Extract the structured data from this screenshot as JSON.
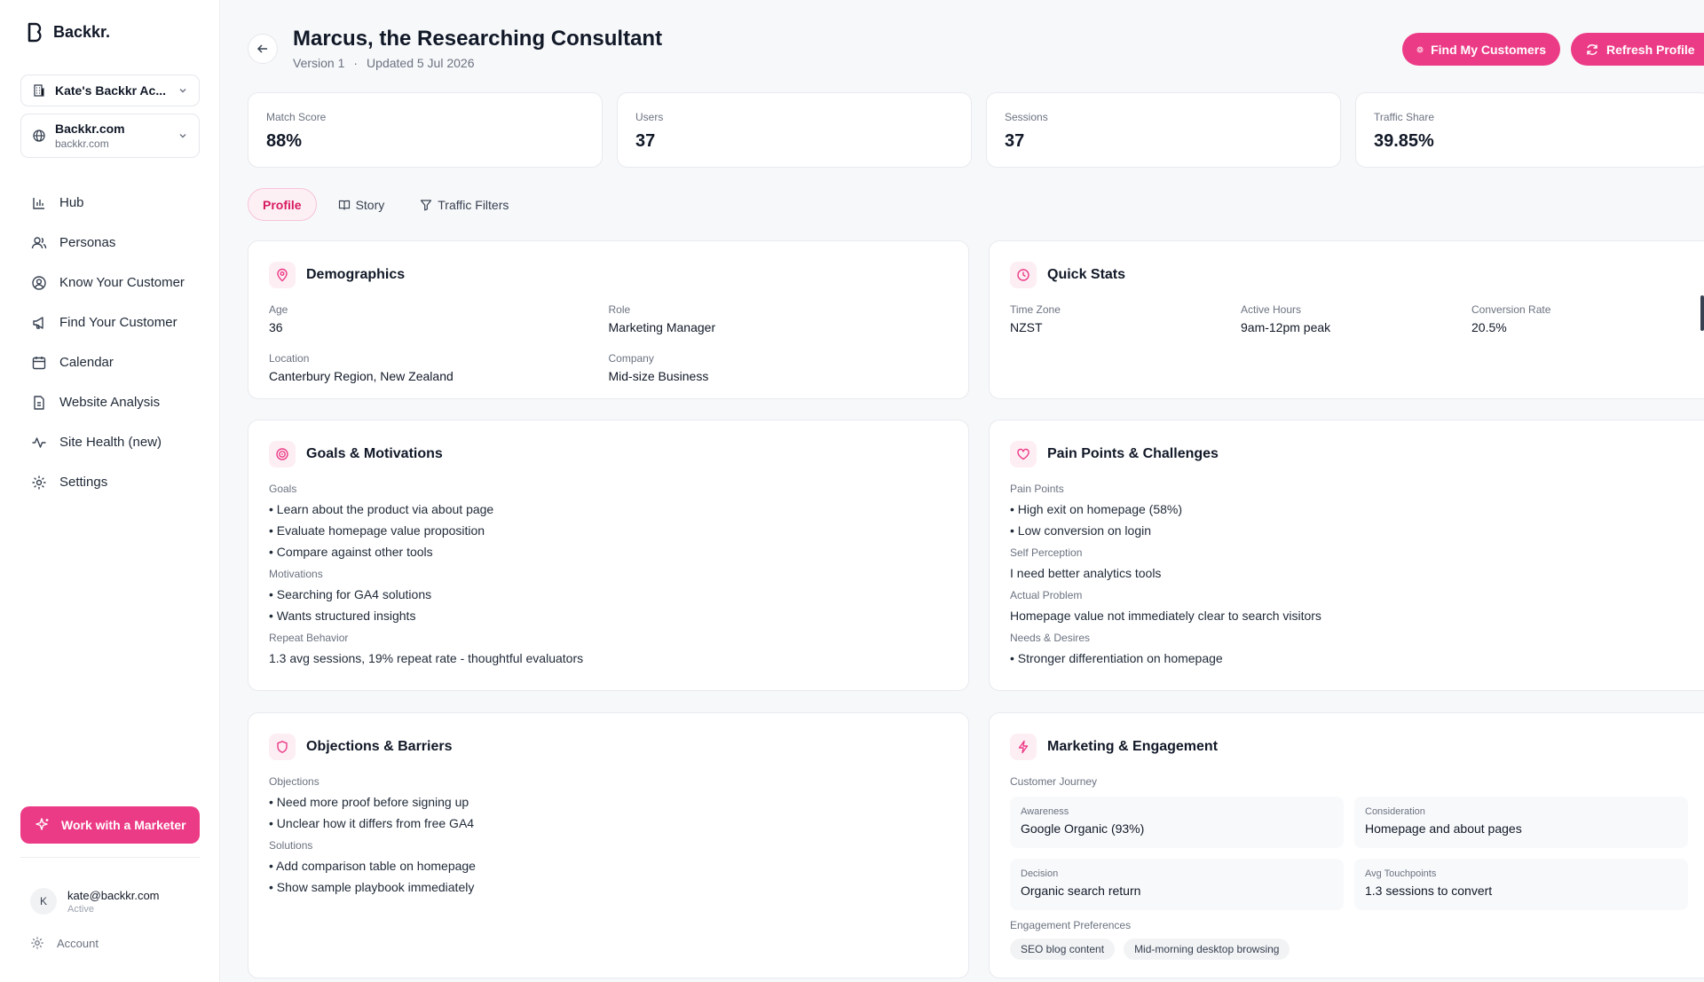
{
  "brand": {
    "name": "Backkr."
  },
  "account_selector": {
    "label": "Kate's Backkr Ac..."
  },
  "site_selector": {
    "name": "Backkr.com",
    "domain": "backkr.com"
  },
  "nav": {
    "items": [
      {
        "label": "Hub",
        "icon": "bar-chart-icon"
      },
      {
        "label": "Personas",
        "icon": "users-icon"
      },
      {
        "label": "Know Your Customer",
        "icon": "user-circle-icon"
      },
      {
        "label": "Find Your Customer",
        "icon": "megaphone-icon"
      },
      {
        "label": "Calendar",
        "icon": "calendar-icon"
      },
      {
        "label": "Website Analysis",
        "icon": "document-icon"
      },
      {
        "label": "Site Health (new)",
        "icon": "activity-icon"
      },
      {
        "label": "Settings",
        "icon": "gear-icon"
      }
    ]
  },
  "cta": {
    "work_label": "Work with a Marketer"
  },
  "user": {
    "initial": "K",
    "email": "kate@backkr.com",
    "status": "Active",
    "account_label": "Account"
  },
  "header": {
    "title": "Marcus, the Researching Consultant",
    "version": "Version 1",
    "separator": "·",
    "updated": "Updated 5 Jul 2026",
    "find_label": "Find My Customers",
    "refresh_label": "Refresh Profile"
  },
  "stats": [
    {
      "label": "Match Score",
      "value": "88%"
    },
    {
      "label": "Users",
      "value": "37"
    },
    {
      "label": "Sessions",
      "value": "37"
    },
    {
      "label": "Traffic Share",
      "value": "39.85%"
    }
  ],
  "tabs": [
    {
      "label": "Profile"
    },
    {
      "label": "Story"
    },
    {
      "label": "Traffic Filters"
    }
  ],
  "demographics": {
    "title": "Demographics",
    "age_label": "Age",
    "age": "36",
    "role_label": "Role",
    "role": "Marketing Manager",
    "location_label": "Location",
    "location": "Canterbury Region, New Zealand",
    "company_label": "Company",
    "company": "Mid-size Business"
  },
  "quick_stats": {
    "title": "Quick Stats",
    "tz_label": "Time Zone",
    "tz": "NZST",
    "hours_label": "Active Hours",
    "hours": "9am-12pm peak",
    "conv_label": "Conversion Rate",
    "conv": "20.5%"
  },
  "goals": {
    "title": "Goals & Motivations",
    "goals_label": "Goals",
    "goals": [
      "Learn about the product via about page",
      "Evaluate homepage value proposition",
      "Compare against other tools"
    ],
    "motivations_label": "Motivations",
    "motivations": [
      "Searching for GA4 solutions",
      "Wants structured insights"
    ],
    "repeat_label": "Repeat Behavior",
    "repeat": "1.3 avg sessions, 19% repeat rate - thoughtful evaluators"
  },
  "pain": {
    "title": "Pain Points & Challenges",
    "pain_label": "Pain Points",
    "pain": [
      "High exit on homepage (58%)",
      "Low conversion on login"
    ],
    "self_label": "Self Perception",
    "self": "I need better analytics tools",
    "actual_label": "Actual Problem",
    "actual": "Homepage value not immediately clear to search visitors",
    "needs_label": "Needs & Desires",
    "needs": [
      "Stronger differentiation on homepage"
    ]
  },
  "objections": {
    "title": "Objections & Barriers",
    "objections_label": "Objections",
    "objections": [
      "Need more proof before signing up",
      "Unclear how it differs from free GA4"
    ],
    "solutions_label": "Solutions",
    "solutions": [
      "Add comparison table on homepage",
      "Show sample playbook immediately"
    ]
  },
  "marketing": {
    "title": "Marketing & Engagement",
    "journey_label": "Customer Journey",
    "journey": [
      {
        "label": "Awareness",
        "value": "Google Organic (93%)"
      },
      {
        "label": "Consideration",
        "value": "Homepage and about pages"
      },
      {
        "label": "Decision",
        "value": "Organic search return"
      },
      {
        "label": "Avg Touchpoints",
        "value": "1.3 sessions to convert"
      }
    ],
    "prefs_label": "Engagement Preferences",
    "prefs": [
      "SEO blog content",
      "Mid-morning desktop browsing"
    ]
  },
  "colors": {
    "accent": "#ec3b86",
    "accent_soft": "#fdeef4",
    "background": "#f7f8fa"
  }
}
